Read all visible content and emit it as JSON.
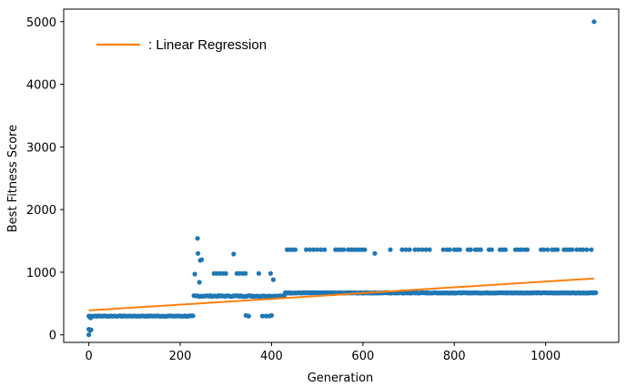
{
  "chart_data": {
    "type": "scatter",
    "title": "",
    "xlabel": "Generation",
    "ylabel": "Best Fitness Score",
    "xlim": [
      -55,
      1160
    ],
    "ylim": [
      -120,
      5200
    ],
    "xticks": [
      0,
      200,
      400,
      600,
      800,
      1000
    ],
    "yticks": [
      0,
      1000,
      2000,
      3000,
      4000,
      5000
    ],
    "grid": false,
    "legend": {
      "placement": "top-left",
      "entries": [
        ": Linear Regression"
      ]
    },
    "colors": {
      "points": "#1f77b4",
      "regression": "#ff7f0e"
    },
    "series": [
      {
        "kind": "scatter",
        "segments": [
          {
            "x_start": 0,
            "x_end": 230,
            "x_step": 3,
            "y": 300,
            "jitter": 10
          },
          {
            "x_start": 230,
            "x_end": 430,
            "x_step": 3,
            "y": 620,
            "jitter": 15
          },
          {
            "x_start": 430,
            "x_end": 1110,
            "x_step": 2,
            "y": 670,
            "jitter": 8
          }
        ],
        "points": [
          [
            0,
            0
          ],
          [
            0,
            90
          ],
          [
            3,
            70
          ],
          [
            5,
            80
          ],
          [
            2,
            290
          ],
          [
            4,
            270
          ],
          [
            232,
            970
          ],
          [
            238,
            1540
          ],
          [
            239,
            1300
          ],
          [
            244,
            1190
          ],
          [
            247,
            1200
          ],
          [
            242,
            840
          ],
          [
            274,
            980
          ],
          [
            280,
            980
          ],
          [
            287,
            980
          ],
          [
            294,
            980
          ],
          [
            300,
            980
          ],
          [
            317,
            1290
          ],
          [
            324,
            980
          ],
          [
            330,
            980
          ],
          [
            337,
            980
          ],
          [
            343,
            980
          ],
          [
            344,
            310
          ],
          [
            350,
            300
          ],
          [
            372,
            980
          ],
          [
            380,
            300
          ],
          [
            388,
            300
          ],
          [
            395,
            300
          ],
          [
            400,
            310
          ],
          [
            398,
            980
          ],
          [
            404,
            880
          ],
          [
            434,
            1360
          ],
          [
            440,
            1360
          ],
          [
            446,
            1360
          ],
          [
            452,
            1360
          ],
          [
            476,
            1360
          ],
          [
            484,
            1360
          ],
          [
            492,
            1360
          ],
          [
            500,
            1360
          ],
          [
            508,
            1360
          ],
          [
            516,
            1360
          ],
          [
            540,
            1360
          ],
          [
            546,
            1360
          ],
          [
            552,
            1360
          ],
          [
            558,
            1360
          ],
          [
            568,
            1360
          ],
          [
            574,
            1360
          ],
          [
            580,
            1360
          ],
          [
            586,
            1360
          ],
          [
            592,
            1360
          ],
          [
            598,
            1360
          ],
          [
            604,
            1360
          ],
          [
            626,
            1300
          ],
          [
            660,
            1360
          ],
          [
            686,
            1360
          ],
          [
            694,
            1360
          ],
          [
            702,
            1360
          ],
          [
            714,
            1360
          ],
          [
            722,
            1360
          ],
          [
            730,
            1360
          ],
          [
            738,
            1360
          ],
          [
            746,
            1360
          ],
          [
            776,
            1360
          ],
          [
            784,
            1360
          ],
          [
            790,
            1360
          ],
          [
            800,
            1360
          ],
          [
            806,
            1360
          ],
          [
            812,
            1360
          ],
          [
            830,
            1360
          ],
          [
            836,
            1360
          ],
          [
            846,
            1360
          ],
          [
            852,
            1360
          ],
          [
            858,
            1360
          ],
          [
            876,
            1360
          ],
          [
            882,
            1360
          ],
          [
            900,
            1360
          ],
          [
            906,
            1360
          ],
          [
            912,
            1360
          ],
          [
            934,
            1360
          ],
          [
            940,
            1360
          ],
          [
            946,
            1360
          ],
          [
            954,
            1360
          ],
          [
            960,
            1360
          ],
          [
            990,
            1360
          ],
          [
            996,
            1360
          ],
          [
            1004,
            1360
          ],
          [
            1014,
            1360
          ],
          [
            1020,
            1360
          ],
          [
            1026,
            1360
          ],
          [
            1040,
            1360
          ],
          [
            1046,
            1360
          ],
          [
            1052,
            1360
          ],
          [
            1058,
            1360
          ],
          [
            1068,
            1360
          ],
          [
            1076,
            1360
          ],
          [
            1082,
            1360
          ],
          [
            1090,
            1360
          ],
          [
            1100,
            1360
          ],
          [
            1106,
            5000
          ]
        ]
      },
      {
        "name": ": Linear Regression",
        "kind": "line",
        "x": [
          0,
          1106
        ],
        "y": [
          390,
          900
        ]
      }
    ]
  }
}
